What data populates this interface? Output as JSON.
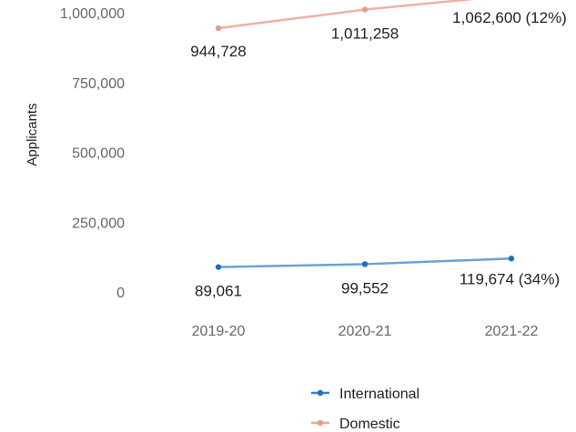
{
  "chart_data": {
    "type": "line",
    "title": "",
    "xlabel": "",
    "ylabel": "Applicants",
    "ylim": [
      0,
      1000000
    ],
    "yticks": [
      {
        "value": 0,
        "label": "0"
      },
      {
        "value": 250000,
        "label": "250,000"
      },
      {
        "value": 500000,
        "label": "500,000"
      },
      {
        "value": 750000,
        "label": "750,000"
      },
      {
        "value": 1000000,
        "label": "1,000,000"
      }
    ],
    "categories": [
      "2019-20",
      "2020-21",
      "2021-22"
    ],
    "grid": false,
    "legend_position": "bottom",
    "series": [
      {
        "name": "International",
        "color": "#3a82c8",
        "values": [
          89061,
          99552,
          119674
        ],
        "labels": [
          "89,061",
          "99,552",
          "119,674 (34%)"
        ]
      },
      {
        "name": "Domestic",
        "color": "#f0a897",
        "values": [
          944728,
          1011258,
          1062600
        ],
        "labels": [
          "944,728",
          "1,011,258",
          "1,062,600 (12%)"
        ]
      }
    ]
  }
}
